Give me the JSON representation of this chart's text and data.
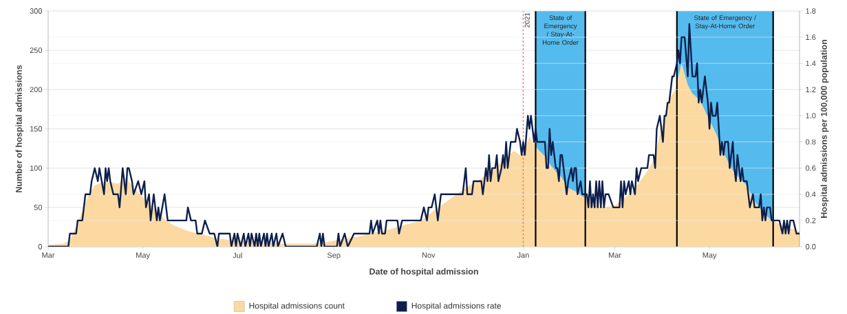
{
  "chart_data": {
    "type": "line",
    "xlabel": "Date of hospital admission",
    "ylabel": "Number of hospital admissions",
    "y2label": "Hospital admissions per 100,000 population",
    "xlim": [
      "2020-03-01",
      "2021-06-28"
    ],
    "xticks": [
      {
        "value": "2020-03-01",
        "label": "Mar"
      },
      {
        "value": "2020-05-01",
        "label": "May"
      },
      {
        "value": "2020-07-01",
        "label": "Jul"
      },
      {
        "value": "2020-09-01",
        "label": "Sep"
      },
      {
        "value": "2020-11-01",
        "label": "Nov"
      },
      {
        "value": "2021-01-01",
        "label": "Jan"
      },
      {
        "value": "2021-03-01",
        "label": "Mar"
      },
      {
        "value": "2021-05-01",
        "label": "May"
      }
    ],
    "ylim": [
      0,
      300
    ],
    "yticks": [
      0,
      50,
      100,
      150,
      200,
      250,
      300
    ],
    "y2lim": [
      0,
      1.8
    ],
    "y2ticks": [
      {
        "value": 0,
        "label": "0.0"
      },
      0.2,
      0.4,
      0.6,
      0.8,
      {
        "value": 1,
        "label": "1.0"
      },
      1.2,
      1.4,
      1.6,
      1.8
    ],
    "grid": "y",
    "legend": "bottom",
    "ref_lines": [
      {
        "axis": "x",
        "value": "2021-01-01",
        "label": "2021",
        "color": "#e8707f",
        "line_style": "dashed"
      }
    ],
    "bands": [
      {
        "axis": "x",
        "from": "2021-01-09",
        "to": "2021-02-10",
        "label": "State of Emergency / Stay-At-Home Order",
        "color": "#55bbee"
      },
      {
        "axis": "x",
        "from": "2021-04-10",
        "to": "2021-06-11",
        "label": "State of Emergency / Stay-At-Home Order",
        "color": "#55bbee"
      }
    ],
    "series": [
      {
        "name": "Hospital admissions count",
        "type": "area",
        "color": "#fcd9a0",
        "x": [
          "2020-03-01",
          "2020-03-06",
          "2020-03-11",
          "2020-03-15",
          "2020-03-19",
          "2020-03-23",
          "2020-03-27",
          "2020-03-31",
          "2020-04-05",
          "2020-04-10",
          "2020-04-15",
          "2020-04-20",
          "2020-04-25",
          "2020-04-30",
          "2020-05-05",
          "2020-05-10",
          "2020-05-15",
          "2020-05-20",
          "2020-05-30",
          "2020-06-09",
          "2020-06-19",
          "2020-06-29",
          "2020-07-09",
          "2020-07-19",
          "2020-07-29",
          "2020-08-08",
          "2020-08-18",
          "2020-08-28",
          "2020-09-07",
          "2020-09-17",
          "2020-09-27",
          "2020-10-07",
          "2020-10-17",
          "2020-10-27",
          "2020-11-06",
          "2020-11-16",
          "2020-11-26",
          "2020-12-06",
          "2020-12-16",
          "2020-12-26",
          "2020-12-31",
          "2021-01-05",
          "2021-01-10",
          "2021-01-15",
          "2021-01-20",
          "2021-01-25",
          "2021-01-30",
          "2021-02-04",
          "2021-02-09",
          "2021-02-14",
          "2021-02-19",
          "2021-02-24",
          "2021-03-01",
          "2021-03-06",
          "2021-03-11",
          "2021-03-16",
          "2021-03-21",
          "2021-03-26",
          "2021-03-31",
          "2021-04-05",
          "2021-04-09",
          "2021-04-13",
          "2021-04-17",
          "2021-04-20",
          "2021-04-25",
          "2021-04-30",
          "2021-05-05",
          "2021-05-10",
          "2021-05-15",
          "2021-05-20",
          "2021-05-25",
          "2021-05-30",
          "2021-06-04",
          "2021-06-09",
          "2021-06-14",
          "2021-06-19",
          "2021-06-24",
          "2021-06-28"
        ],
        "values": [
          2,
          3,
          4,
          8,
          25,
          45,
          66,
          78,
          82,
          82,
          80,
          88,
          75,
          65,
          55,
          45,
          35,
          28,
          20,
          15,
          10,
          8,
          7,
          5,
          4,
          4,
          4,
          6,
          10,
          13,
          18,
          22,
          28,
          33,
          48,
          62,
          76,
          88,
          104,
          122,
          115,
          140,
          125,
          115,
          100,
          90,
          75,
          70,
          63,
          55,
          51,
          51,
          52,
          60,
          68,
          80,
          93,
          110,
          150,
          188,
          200,
          234,
          206,
          195,
          186,
          165,
          145,
          120,
          100,
          88,
          78,
          58,
          45,
          35,
          30,
          25,
          22,
          19
        ]
      },
      {
        "name": "Hospital admissions rate",
        "type": "line",
        "axis": "y2",
        "color": "#0d1f4c",
        "x": [
          "2020-03-01",
          "2020-03-14",
          "2020-03-15",
          "2020-03-19",
          "2020-03-20",
          "2020-03-23",
          "2020-03-25",
          "2020-03-28",
          "2020-03-29",
          "2020-03-31",
          "2020-04-02",
          "2020-04-03",
          "2020-04-06",
          "2020-04-07",
          "2020-04-08",
          "2020-04-09",
          "2020-04-10",
          "2020-04-12",
          "2020-04-15",
          "2020-04-16",
          "2020-04-18",
          "2020-04-20",
          "2020-04-21",
          "2020-04-22",
          "2020-04-24",
          "2020-04-25",
          "2020-04-28",
          "2020-04-30",
          "2020-05-02",
          "2020-05-03",
          "2020-05-05",
          "2020-05-06",
          "2020-05-08",
          "2020-05-10",
          "2020-05-11",
          "2020-05-12",
          "2020-05-15",
          "2020-05-17",
          "2020-05-29",
          "2020-05-30",
          "2020-06-01",
          "2020-06-04",
          "2020-06-05",
          "2020-06-08",
          "2020-06-10",
          "2020-06-13",
          "2020-06-16",
          "2020-06-18",
          "2020-06-19",
          "2020-06-26",
          "2020-06-27",
          "2020-06-29",
          "2020-06-30",
          "2020-07-01",
          "2020-07-03",
          "2020-07-05",
          "2020-07-06",
          "2020-07-08",
          "2020-07-09",
          "2020-07-10",
          "2020-07-12",
          "2020-07-13",
          "2020-07-14",
          "2020-07-15",
          "2020-07-16",
          "2020-07-18",
          "2020-07-19",
          "2020-07-20",
          "2020-07-21",
          "2020-07-23",
          "2020-07-24",
          "2020-07-26",
          "2020-07-27",
          "2020-07-30",
          "2020-08-01",
          "2020-08-21",
          "2020-08-23",
          "2020-08-24",
          "2020-08-25",
          "2020-08-26",
          "2020-09-03",
          "2020-09-04",
          "2020-09-05",
          "2020-09-08",
          "2020-09-10",
          "2020-09-14",
          "2020-09-24",
          "2020-09-25",
          "2020-09-26",
          "2020-09-29",
          "2020-09-30",
          "2020-10-01",
          "2020-10-02",
          "2020-10-04",
          "2020-10-05",
          "2020-10-12",
          "2020-10-13",
          "2020-10-15",
          "2020-10-27",
          "2020-10-29",
          "2020-10-31",
          "2020-11-01",
          "2020-11-03",
          "2020-11-05",
          "2020-11-07",
          "2020-11-09",
          "2020-11-23",
          "2020-11-25",
          "2020-11-26",
          "2020-11-29",
          "2020-11-30",
          "2020-12-05",
          "2020-12-06",
          "2020-12-08",
          "2020-12-09",
          "2020-12-10",
          "2020-12-11",
          "2020-12-12",
          "2020-12-14",
          "2020-12-15",
          "2020-12-16",
          "2020-12-18",
          "2020-12-19",
          "2020-12-20",
          "2020-12-21",
          "2020-12-22",
          "2020-12-24",
          "2020-12-27",
          "2020-12-28",
          "2020-12-30",
          "2020-12-31",
          "2021-01-01",
          "2021-01-02",
          "2021-01-04",
          "2021-01-05",
          "2021-01-06",
          "2021-01-08",
          "2021-01-09",
          "2021-01-10",
          "2021-01-15",
          "2021-01-16",
          "2021-01-17",
          "2021-01-18",
          "2021-01-19",
          "2021-01-20",
          "2021-01-22",
          "2021-01-23",
          "2021-01-24",
          "2021-01-25",
          "2021-01-26",
          "2021-01-28",
          "2021-01-29",
          "2021-01-30",
          "2021-02-01",
          "2021-02-02",
          "2021-02-03",
          "2021-02-04",
          "2021-02-05",
          "2021-02-07",
          "2021-02-08",
          "2021-02-11",
          "2021-02-12",
          "2021-02-13",
          "2021-02-14",
          "2021-02-15",
          "2021-02-16",
          "2021-02-17",
          "2021-02-18",
          "2021-02-19",
          "2021-02-20",
          "2021-02-21",
          "2021-02-22",
          "2021-02-23",
          "2021-02-25",
          "2021-02-28",
          "2021-03-04",
          "2021-03-05",
          "2021-03-06",
          "2021-03-07",
          "2021-03-08",
          "2021-03-10",
          "2021-03-11",
          "2021-03-12",
          "2021-03-14",
          "2021-03-15",
          "2021-03-16",
          "2021-03-18",
          "2021-03-22",
          "2021-03-23",
          "2021-03-26",
          "2021-03-27",
          "2021-03-28",
          "2021-03-30",
          "2021-04-01",
          "2021-04-02",
          "2021-04-03",
          "2021-04-04",
          "2021-04-05",
          "2021-04-06",
          "2021-04-07",
          "2021-04-08",
          "2021-04-10",
          "2021-04-11",
          "2021-04-12",
          "2021-04-13",
          "2021-04-15",
          "2021-04-17",
          "2021-04-18",
          "2021-04-20",
          "2021-04-22",
          "2021-04-23",
          "2021-04-24",
          "2021-04-25",
          "2021-04-26",
          "2021-04-28",
          "2021-04-30",
          "2021-05-01",
          "2021-05-02",
          "2021-05-03",
          "2021-05-05",
          "2021-05-06",
          "2021-05-08",
          "2021-05-09",
          "2021-05-10",
          "2021-05-11",
          "2021-05-13",
          "2021-05-14",
          "2021-05-16",
          "2021-05-17",
          "2021-05-18",
          "2021-05-19",
          "2021-05-21",
          "2021-05-22",
          "2021-05-23",
          "2021-05-25",
          "2021-05-26",
          "2021-05-27",
          "2021-05-29",
          "2021-05-30",
          "2021-06-02",
          "2021-06-03",
          "2021-06-04",
          "2021-06-05",
          "2021-06-06",
          "2021-06-07",
          "2021-06-09",
          "2021-06-10",
          "2021-06-15",
          "2021-06-17",
          "2021-06-18",
          "2021-06-19",
          "2021-06-20",
          "2021-06-21",
          "2021-06-22",
          "2021-06-24",
          "2021-06-26",
          "2021-06-28"
        ],
        "values": [
          0,
          0,
          0.1,
          0.1,
          0.2,
          0.2,
          0.4,
          0.4,
          0.5,
          0.6,
          0.5,
          0.6,
          0.4,
          0.6,
          0.5,
          0.6,
          0.5,
          0.4,
          0.4,
          0.3,
          0.6,
          0.4,
          0.6,
          0.6,
          0.5,
          0.4,
          0.5,
          0.4,
          0.5,
          0.3,
          0.4,
          0.2,
          0.4,
          0.2,
          0.3,
          0.2,
          0.4,
          0.2,
          0.2,
          0.3,
          0.2,
          0.2,
          0.1,
          0.1,
          0.2,
          0.1,
          0.1,
          0,
          0.1,
          0.1,
          0,
          0.1,
          0,
          0.1,
          0,
          0.1,
          0,
          0.1,
          0,
          0.1,
          0,
          0.1,
          0,
          0.1,
          0,
          0.1,
          0,
          0.1,
          0,
          0.1,
          0,
          0.1,
          0,
          0.1,
          0,
          0,
          0.1,
          0,
          0.1,
          0,
          0,
          0.1,
          0,
          0.1,
          0,
          0.1,
          0.1,
          0.2,
          0.1,
          0.2,
          0.1,
          0.2,
          0.1,
          0.1,
          0.2,
          0.2,
          0.1,
          0.2,
          0.2,
          0.3,
          0.2,
          0.3,
          0.3,
          0.4,
          0.2,
          0.4,
          0.4,
          0.6,
          0.4,
          0.4,
          0.5,
          0.5,
          0.4,
          0.6,
          0.5,
          0.7,
          0.5,
          0.6,
          0.6,
          0.7,
          0.5,
          0.6,
          0.7,
          0.6,
          0.8,
          0.6,
          0.8,
          0.8,
          0.9,
          0.8,
          0.7,
          0.8,
          0.7,
          1.0,
          0.9,
          1.0,
          0.8,
          0.9,
          0.8,
          0.8,
          0.6,
          0.6,
          0.9,
          0.7,
          0.8,
          0.6,
          0.6,
          0.5,
          0.7,
          0.7,
          0.5,
          0.4,
          0.5,
          0.6,
          0.5,
          0.6,
          0.6,
          0.4,
          0.5,
          0.4,
          0.4,
          0.3,
          0.5,
          0.3,
          0.4,
          0.3,
          0.5,
          0.3,
          0.5,
          0.3,
          0.5,
          0.3,
          0.4,
          0.4,
          0.3,
          0.3,
          0.5,
          0.3,
          0.5,
          0.4,
          0.5,
          0.4,
          0.5,
          0.4,
          0.6,
          0.5,
          0.6,
          0.6,
          0.7,
          0.7,
          0.6,
          0.9,
          1.0,
          0.8,
          1.0,
          1.0,
          1.1,
          1.1,
          1.2,
          1.3,
          1.3,
          1.4,
          1.5,
          1.4,
          1.6,
          1.6,
          1.3,
          1.7,
          1.3,
          1.3,
          1.4,
          1.1,
          1.2,
          1.1,
          1.3,
          1.1,
          0.9,
          1.1,
          1.0,
          1.0,
          1.1,
          0.7,
          0.8,
          0.7,
          0.8,
          0.8,
          0.6,
          0.8,
          0.6,
          0.5,
          0.7,
          0.5,
          0.6,
          0.5,
          0.5,
          0.4,
          0.3,
          0.4,
          0.3,
          0.3,
          0.4,
          0.2,
          0.3,
          0.2,
          0.3,
          0.3,
          0.2,
          0.2,
          0.1,
          0.2,
          0.1,
          0.2,
          0.1,
          0.2,
          0.2,
          0.1,
          0.1
        ]
      }
    ]
  }
}
